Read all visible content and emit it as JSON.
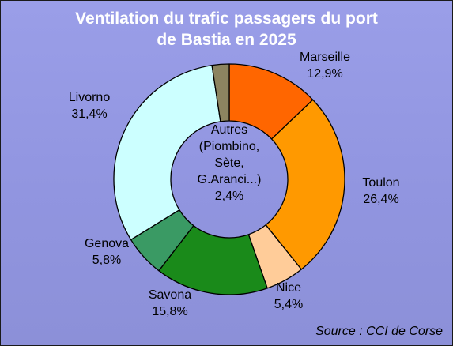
{
  "chart_data": {
    "type": "pie",
    "title": "Ventilation du trafic passagers du port\nde Bastia en 2025",
    "source": "Source : CCI de Corse",
    "slices": [
      {
        "name": "Marseille",
        "value": 12.9,
        "value_label": "12,9%",
        "color": "#ff6600"
      },
      {
        "name": "Toulon",
        "value": 26.4,
        "value_label": "26,4%",
        "color": "#ff9900"
      },
      {
        "name": "Nice",
        "value": 5.4,
        "value_label": "5,4%",
        "color": "#ffcc99"
      },
      {
        "name": "Savona",
        "value": 15.8,
        "value_label": "15,8%",
        "color": "#1a8a1a"
      },
      {
        "name": "Genova",
        "value": 5.8,
        "value_label": "5,8%",
        "color": "#3a9a64"
      },
      {
        "name": "Livorno",
        "value": 31.4,
        "value_label": "31,4%",
        "color": "#ccffff"
      },
      {
        "name": "Autres",
        "value": 2.4,
        "value_label": "2,4%",
        "color": "#8c8460"
      }
    ],
    "center_label": [
      "Autres",
      "(Piombino,",
      "Sète,",
      "G.Aranci...)",
      "2,4%"
    ]
  }
}
